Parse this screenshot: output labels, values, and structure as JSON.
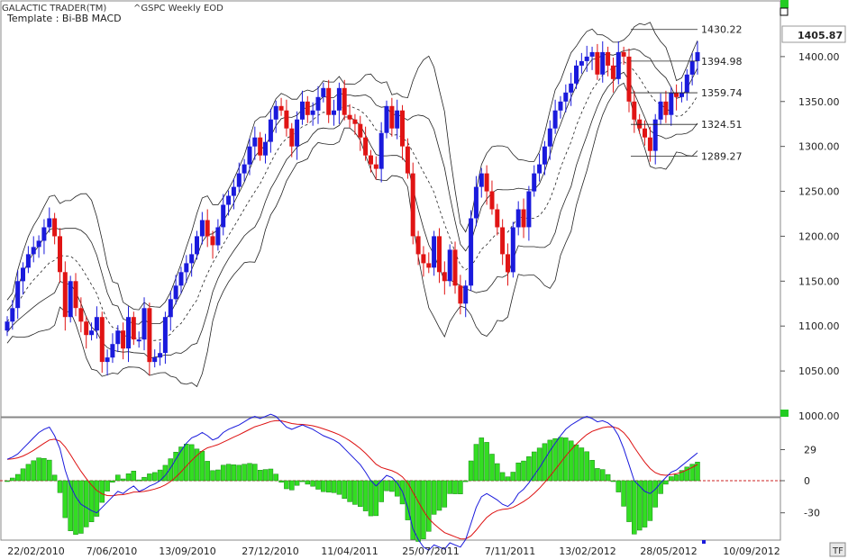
{
  "header": {
    "app": "GALACTIC TRADER(TM)",
    "symbol": "^GSPC Weekly EOD",
    "template": "Template : Bi-BB MACD",
    "tf_button": "TF"
  },
  "colors": {
    "up": "#1a1adc",
    "down": "#e01414",
    "hist": "#33dd22",
    "macd": "#1a1adc",
    "signal": "#dd1111",
    "bands": "#222222"
  },
  "chart_data": [
    {
      "type": "candlestick",
      "title": "",
      "ylim": [
        1000,
        1460
      ],
      "y_ticks": [
        1000,
        1050,
        1100,
        1150,
        1200,
        1250,
        1300,
        1350,
        1400
      ],
      "x_tick_labels": [
        "22/02/2010",
        "7/06/2010",
        "13/09/2010",
        "27/12/2010",
        "11/04/2011",
        "25/07/2011",
        "7/11/2011",
        "13/02/2012",
        "28/05/2012",
        "10/09/2012"
      ],
      "last_price": "1405.87",
      "band_labels": [
        "1430.22",
        "1394.98",
        "1359.74",
        "1324.51",
        "1289.27"
      ],
      "close": [
        1105,
        1120,
        1150,
        1165,
        1180,
        1188,
        1195,
        1210,
        1220,
        1200,
        1160,
        1110,
        1150,
        1120,
        1105,
        1090,
        1095,
        1110,
        1060,
        1065,
        1080,
        1095,
        1075,
        1110,
        1085,
        1085,
        1120,
        1060,
        1065,
        1070,
        1110,
        1130,
        1145,
        1160,
        1170,
        1180,
        1200,
        1218,
        1200,
        1190,
        1210,
        1235,
        1245,
        1255,
        1270,
        1280,
        1300,
        1310,
        1290,
        1305,
        1330,
        1345,
        1340,
        1320,
        1300,
        1330,
        1350,
        1335,
        1340,
        1355,
        1365,
        1335,
        1340,
        1365,
        1335,
        1330,
        1325,
        1310,
        1290,
        1280,
        1275,
        1315,
        1345,
        1320,
        1340,
        1300,
        1270,
        1200,
        1180,
        1170,
        1165,
        1200,
        1160,
        1150,
        1185,
        1145,
        1125,
        1145,
        1220,
        1255,
        1270,
        1250,
        1230,
        1210,
        1180,
        1160,
        1210,
        1230,
        1210,
        1250,
        1270,
        1280,
        1300,
        1320,
        1340,
        1350,
        1360,
        1370,
        1390,
        1395,
        1400,
        1405,
        1380,
        1405,
        1390,
        1375,
        1405,
        1400,
        1350,
        1330,
        1320,
        1310,
        1295,
        1330,
        1350,
        1335,
        1360,
        1355,
        1360,
        1380,
        1395,
        1405
      ]
    },
    {
      "type": "macd",
      "title": "",
      "ylim": [
        -70,
        62
      ],
      "y_ticks": [
        29,
        0,
        -30
      ],
      "macd": [
        20,
        22,
        25,
        30,
        35,
        40,
        45,
        48,
        50,
        42,
        30,
        10,
        -5,
        -15,
        -22,
        -25,
        -28,
        -30,
        -25,
        -20,
        -15,
        -10,
        -12,
        -8,
        -5,
        -10,
        -8,
        -5,
        -3,
        0,
        5,
        12,
        20,
        28,
        35,
        40,
        42,
        45,
        42,
        38,
        40,
        45,
        48,
        50,
        52,
        55,
        58,
        60,
        58,
        60,
        62,
        60,
        55,
        50,
        48,
        50,
        52,
        50,
        48,
        45,
        42,
        40,
        38,
        35,
        30,
        25,
        20,
        15,
        8,
        0,
        -5,
        0,
        5,
        3,
        -2,
        -10,
        -25,
        -45,
        -55,
        -62,
        -65,
        -60,
        -62,
        -64,
        -58,
        -60,
        -62,
        -55,
        -40,
        -25,
        -15,
        -12,
        -15,
        -18,
        -22,
        -24,
        -20,
        -12,
        -8,
        -2,
        5,
        12,
        20,
        28,
        35,
        42,
        48,
        52,
        55,
        58,
        60,
        58,
        55,
        56,
        54,
        50,
        42,
        30,
        15,
        0,
        -5,
        -10,
        -12,
        -8,
        -2,
        3,
        8,
        10,
        14,
        18,
        22,
        26
      ]
    }
  ]
}
